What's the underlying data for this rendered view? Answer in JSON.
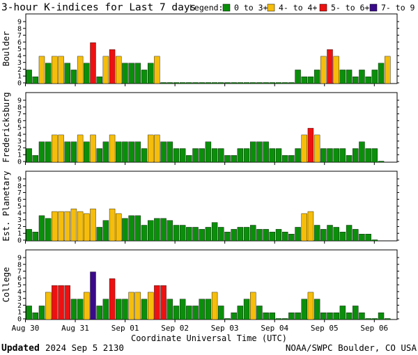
{
  "title": "3-hour K-indices for Last 7 days",
  "legend": {
    "label": "Legend:",
    "items": [
      {
        "text": "0 to 3+",
        "color": "#0b8f0b"
      },
      {
        "text": "4- to 4+",
        "color": "#f5bd0c"
      },
      {
        "text": "5- to 6+",
        "color": "#ee1111"
      },
      {
        "text": "7- to 9",
        "color": "#3a0a8a"
      }
    ]
  },
  "xlabel": "Coordinate Universal Time (UTC)",
  "footer": {
    "updated_label": "Updated",
    "updated_value": "2024 Sep  5 2130",
    "credit": "NOAA/SWPC Boulder, CO USA"
  },
  "colors": {
    "quiet": "#0b8f0b",
    "active": "#f5bd0c",
    "storm": "#ee1111",
    "severe": "#3a0a8a",
    "border": "#000000"
  },
  "chart_data": [
    {
      "type": "bar",
      "title": "Boulder",
      "ylabel": "Boulder",
      "ylim": [
        0,
        9
      ],
      "yticks": [
        "0",
        "1",
        "2",
        "3",
        "4",
        "5",
        "6",
        "7",
        "8",
        "9"
      ],
      "x_tick_labels": [
        "Aug 30",
        "Aug 31",
        "Sep 01",
        "Sep 02",
        "Sep 03",
        "Sep 04",
        "Sep 05",
        "Sep 06"
      ],
      "values": [
        2,
        1,
        4,
        3,
        4,
        4,
        3,
        2,
        4,
        3,
        6,
        1,
        4,
        5,
        4,
        3,
        3,
        3,
        2,
        3,
        4,
        0,
        0,
        0,
        0,
        0,
        0,
        0,
        0,
        0,
        0,
        0,
        0,
        0,
        0,
        0,
        0,
        0,
        0,
        0,
        0,
        0,
        2,
        1,
        1,
        2,
        4,
        5,
        4,
        2,
        2,
        1,
        2,
        1,
        2,
        3,
        4,
        2,
        0
      ]
    },
    {
      "type": "bar",
      "title": "Fredericksburg",
      "ylabel": "Fredericksburg",
      "ylim": [
        0,
        9
      ],
      "yticks": [
        "0",
        "1",
        "2",
        "3",
        "4",
        "5",
        "6",
        "7",
        "8",
        "9"
      ],
      "x_tick_labels": [
        "Aug 30",
        "Aug 31",
        "Sep 01",
        "Sep 02",
        "Sep 03",
        "Sep 04",
        "Sep 05",
        "Sep 06"
      ],
      "values": [
        2,
        1,
        3,
        3,
        4,
        4,
        3,
        3,
        4,
        3,
        4,
        2,
        3,
        4,
        3,
        3,
        3,
        3,
        2,
        4,
        4,
        3,
        3,
        2,
        2,
        1,
        2,
        2,
        3,
        2,
        2,
        1,
        1,
        2,
        2,
        3,
        3,
        3,
        2,
        2,
        1,
        1,
        2,
        4,
        5,
        4,
        2,
        2,
        2,
        2,
        1,
        2,
        3,
        2,
        2,
        0
      ]
    },
    {
      "type": "bar",
      "title": "Est. Planetary",
      "ylabel": "Est. Planetary",
      "ylim": [
        0,
        9
      ],
      "yticks": [
        "0",
        "1",
        "2",
        "3",
        "4",
        "5",
        "6",
        "7",
        "8",
        "9"
      ],
      "x_tick_labels": [
        "Aug 30",
        "Aug 31",
        "Sep 01",
        "Sep 02",
        "Sep 03",
        "Sep 04",
        "Sep 05",
        "Sep 06"
      ],
      "values": [
        1.7,
        1.3,
        3.7,
        3.3,
        4.3,
        4.3,
        4.3,
        4.7,
        4.3,
        4.0,
        4.7,
        2.0,
        3.0,
        4.7,
        4.0,
        3.3,
        3.7,
        3.7,
        2.3,
        3.0,
        3.3,
        3.3,
        3.0,
        2.3,
        2.3,
        2.0,
        2.0,
        1.7,
        2.0,
        2.7,
        2.0,
        1.3,
        1.7,
        2.0,
        2.0,
        2.3,
        1.7,
        1.7,
        1.3,
        1.7,
        1.3,
        1.0,
        2.0,
        4.0,
        4.3,
        2.3,
        1.7,
        2.3,
        2.0,
        1.3,
        2.3,
        1.7,
        1.0,
        1.0,
        0
      ]
    },
    {
      "type": "bar",
      "title": "College",
      "ylabel": "College",
      "ylim": [
        0,
        9
      ],
      "yticks": [
        "0",
        "1",
        "2",
        "3",
        "4",
        "5",
        "6",
        "7",
        "8",
        "9"
      ],
      "x_tick_labels": [
        "Aug 30",
        "Aug 31",
        "Sep 01",
        "Sep 02",
        "Sep 03",
        "Sep 04",
        "Sep 05",
        "Sep 06"
      ],
      "values": [
        2,
        1,
        2,
        4,
        5,
        5,
        5,
        3,
        3,
        4,
        7,
        2,
        3,
        6,
        3,
        3,
        4,
        4,
        3,
        4,
        5,
        5,
        3,
        2,
        3,
        2,
        2,
        3,
        3,
        4,
        2,
        0,
        1,
        2,
        3,
        4,
        2,
        1,
        1,
        0,
        0,
        1,
        1,
        3,
        4,
        3,
        1,
        1,
        1,
        2,
        1,
        2,
        1,
        0,
        0,
        1,
        0
      ]
    }
  ]
}
